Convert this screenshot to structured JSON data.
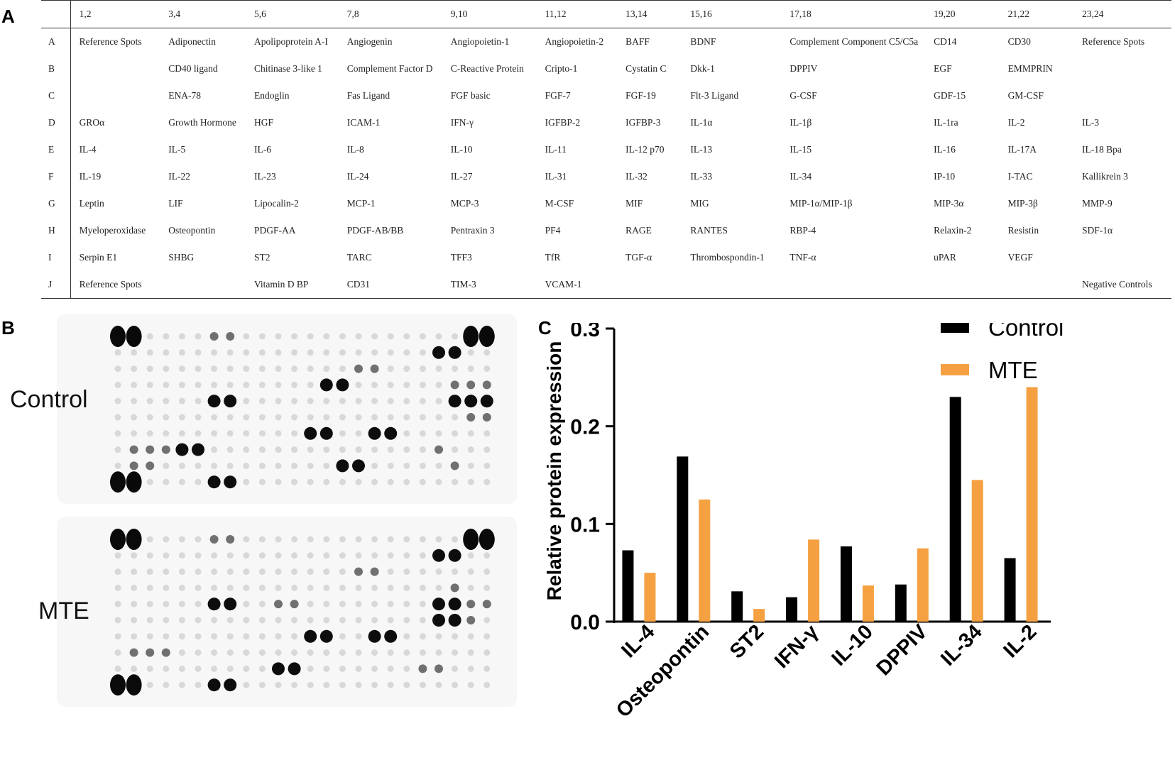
{
  "panels": {
    "a_letter": "A",
    "b_letter": "B",
    "c_letter": "C"
  },
  "table": {
    "columns": [
      "",
      "1,2",
      "3,4",
      "5,6",
      "7,8",
      "9,10",
      "11,12",
      "13,14",
      "15,16",
      "17,18",
      "19,20",
      "21,22",
      "23,24"
    ],
    "rows": [
      {
        "label": "A",
        "cells": [
          "Reference Spots",
          "Adiponectin",
          "Apolipoprotein A-I",
          "Angiogenin",
          "Angiopoietin-1",
          "Angiopoietin-2",
          "BAFF",
          "BDNF",
          "Complement Component C5/C5a",
          "CD14",
          "CD30",
          "Reference Spots"
        ]
      },
      {
        "label": "B",
        "cells": [
          "",
          "CD40 ligand",
          "Chitinase 3-like 1",
          "Complement Factor D",
          "C-Reactive Protein",
          "Cripto-1",
          "Cystatin C",
          "Dkk-1",
          "DPPIV",
          "EGF",
          "EMMPRIN",
          ""
        ]
      },
      {
        "label": "C",
        "cells": [
          "",
          "ENA-78",
          "Endoglin",
          "Fas Ligand",
          "FGF basic",
          "FGF-7",
          "FGF-19",
          "Flt-3 Ligand",
          "G-CSF",
          "GDF-15",
          "GM-CSF",
          ""
        ]
      },
      {
        "label": "D",
        "cells": [
          "GROα",
          "Growth Hormone",
          "HGF",
          "ICAM-1",
          "IFN-γ",
          "IGFBP-2",
          "IGFBP-3",
          "IL-1α",
          "IL-1β",
          "IL-1ra",
          "IL-2",
          "IL-3"
        ]
      },
      {
        "label": "E",
        "cells": [
          "IL-4",
          "IL-5",
          "IL-6",
          "IL-8",
          "IL-10",
          "IL-11",
          "IL-12 p70",
          "IL-13",
          "IL-15",
          "IL-16",
          "IL-17A",
          "IL-18 Bpa"
        ]
      },
      {
        "label": "F",
        "cells": [
          "IL-19",
          "IL-22",
          "IL-23",
          "IL-24",
          "IL-27",
          "IL-31",
          "IL-32",
          "IL-33",
          "IL-34",
          "IP-10",
          "I-TAC",
          "Kallikrein 3"
        ]
      },
      {
        "label": "G",
        "cells": [
          "Leptin",
          "LIF",
          "Lipocalin-2",
          "MCP-1",
          "MCP-3",
          "M-CSF",
          "MIF",
          "MIG",
          "MIP-1α/MIP-1β",
          "MIP-3α",
          "MIP-3β",
          "MMP-9"
        ]
      },
      {
        "label": "H",
        "cells": [
          "Myeloperoxidase",
          "Osteopontin",
          "PDGF-AA",
          "PDGF-AB/BB",
          "Pentraxin 3",
          "PF4",
          "RAGE",
          "RANTES",
          "RBP-4",
          "Relaxin-2",
          "Resistin",
          "SDF-1α"
        ]
      },
      {
        "label": "I",
        "cells": [
          "Serpin E1",
          "SHBG",
          "ST2",
          "TARC",
          "TFF3",
          "TfR",
          "TGF-α",
          "Thrombospondin-1",
          "TNF-α",
          "uPAR",
          "VEGF",
          ""
        ]
      },
      {
        "label": "J",
        "cells": [
          "Reference Spots",
          "",
          "Vitamin D BP",
          "CD31",
          "TIM-3",
          "VCAM-1",
          "",
          "",
          "",
          "",
          "",
          "Negative Controls"
        ]
      }
    ]
  },
  "blots": {
    "control_label": "Control",
    "mte_label": "MTE"
  },
  "colors": {
    "control": "#000000",
    "mte": "#f5a142",
    "blot_bg": "#f7f7f7",
    "spot": "#111111"
  },
  "chart_data": {
    "type": "bar",
    "categories": [
      "IL-4",
      "Osteopontin",
      "ST2",
      "IFN-γ",
      "IL-10",
      "DPPIV",
      "IL-34",
      "IL-2"
    ],
    "series": [
      {
        "name": "Control",
        "values": [
          0.073,
          0.169,
          0.031,
          0.025,
          0.077,
          0.038,
          0.23,
          0.065
        ]
      },
      {
        "name": "MTE",
        "values": [
          0.05,
          0.125,
          0.013,
          0.084,
          0.037,
          0.075,
          0.145,
          0.24
        ]
      }
    ],
    "title": "",
    "xlabel": "",
    "ylabel": "Relative protein expression",
    "ylim": [
      0,
      0.3
    ],
    "yticks": [
      "0.0",
      "0.1",
      "0.2",
      "0.3"
    ],
    "legend_position": "top-right"
  }
}
